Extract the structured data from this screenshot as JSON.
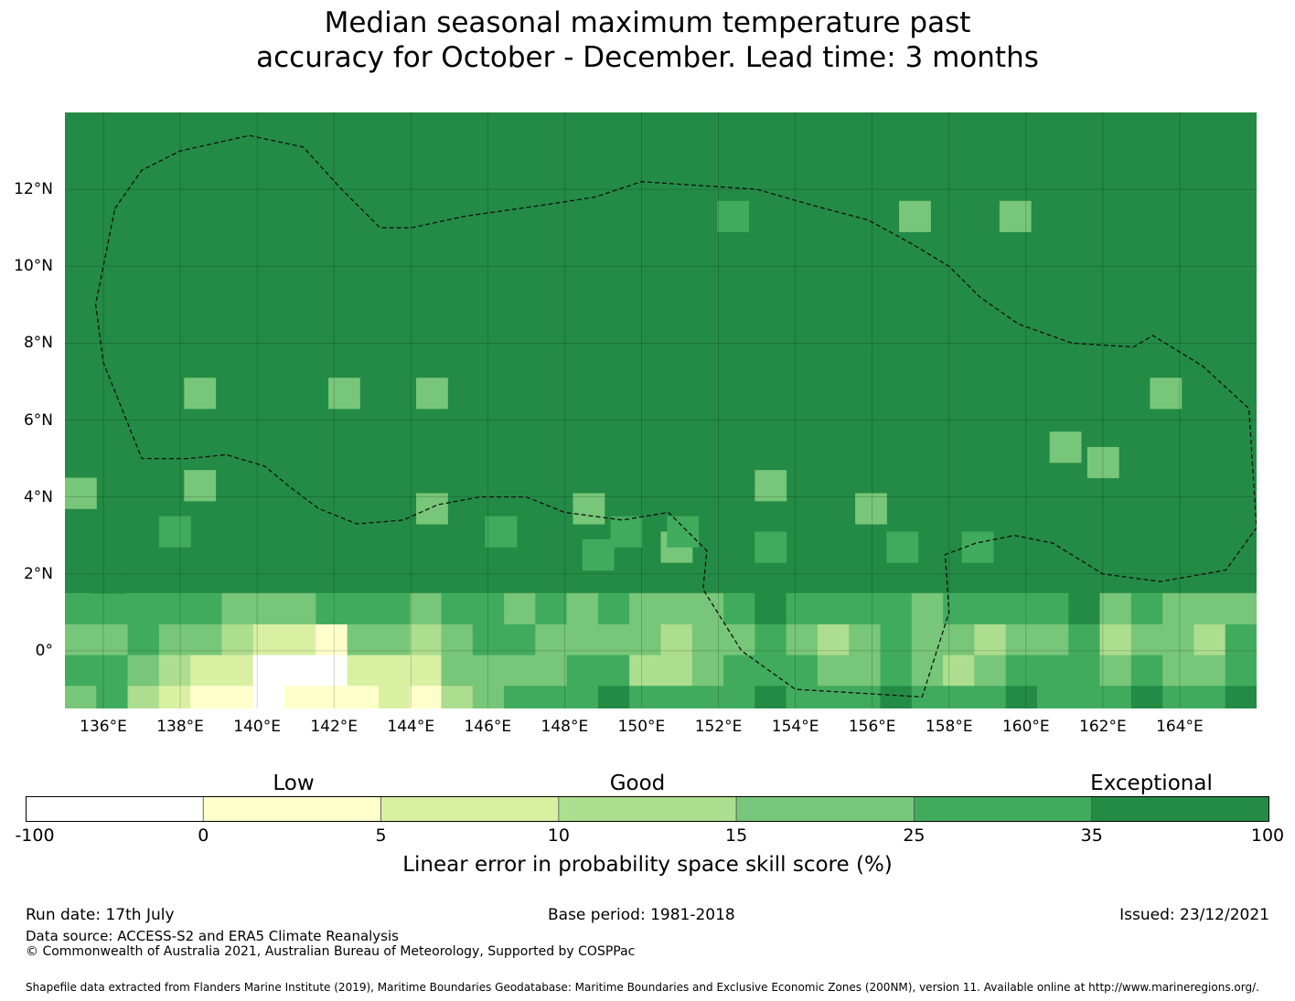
{
  "title_line1": "Median seasonal maximum temperature past",
  "title_line2": "accuracy for October - December. Lead time: 3 months",
  "map": {
    "lon_min": 135,
    "lon_max": 166,
    "lat_min": -1.5,
    "lat_max": 14,
    "grid_lons": [
      136,
      138,
      140,
      142,
      144,
      146,
      148,
      150,
      152,
      154,
      156,
      158,
      160,
      162,
      164
    ],
    "grid_lats": [
      0,
      2,
      4,
      6,
      8,
      10,
      12
    ],
    "x_tick_labels": [
      "136°E",
      "138°E",
      "140°E",
      "142°E",
      "144°E",
      "146°E",
      "148°E",
      "150°E",
      "152°E",
      "154°E",
      "156°E",
      "158°E",
      "160°E",
      "162°E",
      "164°E"
    ],
    "y_tick_labels": [
      "0°",
      "2°N",
      "4°N",
      "6°N",
      "8°N",
      "10°N",
      "12°N"
    ],
    "colors": {
      "0": "#ffffff",
      "1": "#ffffcc",
      "2": "#d9f0a3",
      "3": "#addd8e",
      "4": "#78c679",
      "5": "#41ab5d",
      "6": "#238b45"
    },
    "default_class": 6,
    "cell_size_deg": 0.8,
    "cells": [
      [
        0,
        0.6,
        4
      ],
      [
        0,
        1.4,
        5
      ],
      [
        0,
        2.2,
        4
      ],
      [
        0,
        3.0,
        5
      ],
      [
        1,
        1.4,
        5
      ],
      [
        1,
        2.2,
        4
      ],
      [
        1,
        3.0,
        5
      ],
      [
        1,
        0.6,
        5
      ],
      [
        2,
        0.6,
        3
      ],
      [
        2,
        1.4,
        4
      ],
      [
        2,
        2.2,
        5
      ],
      [
        2,
        3.0,
        5
      ],
      [
        3,
        0.6,
        2
      ],
      [
        3,
        1.4,
        3
      ],
      [
        3,
        2.2,
        4
      ],
      [
        3,
        3.0,
        5
      ],
      [
        4,
        0.6,
        1
      ],
      [
        4,
        1.4,
        2
      ],
      [
        4,
        2.2,
        4
      ],
      [
        4,
        3.0,
        5
      ],
      [
        5,
        0.6,
        1
      ],
      [
        5,
        1.4,
        2
      ],
      [
        5,
        2.2,
        3
      ],
      [
        5,
        3.0,
        4
      ],
      [
        6,
        0.6,
        0
      ],
      [
        6,
        1.4,
        0
      ],
      [
        6,
        2.2,
        2
      ],
      [
        6,
        3.0,
        4
      ],
      [
        7,
        0.6,
        1
      ],
      [
        7,
        1.4,
        0
      ],
      [
        7,
        2.2,
        2
      ],
      [
        7,
        3.0,
        4
      ],
      [
        8,
        0.6,
        1
      ],
      [
        8,
        1.4,
        0
      ],
      [
        8,
        2.2,
        1
      ],
      [
        8,
        3.0,
        5
      ],
      [
        9,
        0.6,
        1
      ],
      [
        9,
        1.4,
        2
      ],
      [
        9,
        2.2,
        4
      ],
      [
        9,
        3.0,
        5
      ],
      [
        10,
        0.6,
        2
      ],
      [
        10,
        1.4,
        2
      ],
      [
        10,
        2.2,
        4
      ],
      [
        10,
        3.0,
        5
      ],
      [
        11,
        0.6,
        1
      ],
      [
        11,
        1.4,
        2
      ],
      [
        11,
        2.2,
        3
      ],
      [
        11,
        3.0,
        4
      ],
      [
        12,
        0.6,
        3
      ],
      [
        12,
        1.4,
        4
      ],
      [
        12,
        2.2,
        4
      ],
      [
        12,
        3.0,
        5
      ],
      [
        13,
        0.6,
        4
      ],
      [
        13,
        1.4,
        4
      ],
      [
        13,
        2.2,
        5
      ],
      [
        13,
        3.0,
        5
      ],
      [
        14,
        0.6,
        5
      ],
      [
        14,
        1.4,
        4
      ],
      [
        14,
        2.2,
        5
      ],
      [
        14,
        3.0,
        4
      ],
      [
        15,
        0.6,
        5
      ],
      [
        15,
        1.4,
        4
      ],
      [
        15,
        2.2,
        4
      ],
      [
        15,
        3.0,
        5
      ],
      [
        16,
        0.6,
        5
      ],
      [
        16,
        1.4,
        5
      ],
      [
        16,
        2.2,
        4
      ],
      [
        16,
        3.0,
        4
      ],
      [
        17,
        0.6,
        6
      ],
      [
        17,
        1.4,
        5
      ],
      [
        17,
        2.2,
        4
      ],
      [
        17,
        3.0,
        5
      ],
      [
        18,
        0.6,
        5
      ],
      [
        18,
        1.4,
        3
      ],
      [
        18,
        2.2,
        4
      ],
      [
        18,
        3.0,
        4
      ],
      [
        19,
        0.6,
        5
      ],
      [
        19,
        1.4,
        3
      ],
      [
        19,
        2.2,
        3
      ],
      [
        19,
        3.0,
        4
      ],
      [
        20,
        0.6,
        5
      ],
      [
        20,
        1.4,
        4
      ],
      [
        20,
        2.2,
        4
      ],
      [
        20,
        3.0,
        4
      ],
      [
        21,
        0.6,
        5
      ],
      [
        21,
        1.4,
        5
      ],
      [
        21,
        2.2,
        4
      ],
      [
        21,
        3.0,
        5
      ],
      [
        22,
        0.6,
        6
      ],
      [
        22,
        1.4,
        5
      ],
      [
        22,
        2.2,
        5
      ],
      [
        22,
        3.0,
        6
      ],
      [
        23,
        0.6,
        5
      ],
      [
        23,
        1.4,
        5
      ],
      [
        23,
        2.2,
        4
      ],
      [
        23,
        3.0,
        5
      ],
      [
        24,
        0.6,
        5
      ],
      [
        24,
        1.4,
        4
      ],
      [
        24,
        2.2,
        3
      ],
      [
        24,
        3.0,
        5
      ],
      [
        25,
        0.6,
        5
      ],
      [
        25,
        1.4,
        4
      ],
      [
        25,
        2.2,
        4
      ],
      [
        25,
        3.0,
        5
      ],
      [
        26,
        0.6,
        6
      ],
      [
        26,
        1.4,
        5
      ],
      [
        26,
        2.2,
        5
      ],
      [
        26,
        3.0,
        5
      ],
      [
        27,
        0.6,
        5
      ],
      [
        27,
        1.4,
        4
      ],
      [
        27,
        2.2,
        4
      ],
      [
        27,
        3.0,
        4
      ],
      [
        28,
        0.6,
        5
      ],
      [
        28,
        1.4,
        3
      ],
      [
        28,
        2.2,
        4
      ],
      [
        28,
        3.0,
        5
      ],
      [
        29,
        0.6,
        5
      ],
      [
        29,
        1.4,
        4
      ],
      [
        29,
        2.2,
        3
      ],
      [
        29,
        3.0,
        5
      ],
      [
        30,
        0.6,
        6
      ],
      [
        30,
        1.4,
        5
      ],
      [
        30,
        2.2,
        4
      ],
      [
        30,
        3.0,
        5
      ],
      [
        31,
        0.6,
        5
      ],
      [
        31,
        1.4,
        5
      ],
      [
        31,
        2.2,
        4
      ],
      [
        31,
        3.0,
        5
      ],
      [
        32,
        0.6,
        5
      ],
      [
        32,
        1.4,
        5
      ],
      [
        32,
        2.2,
        5
      ],
      [
        32,
        3.0,
        6
      ],
      [
        33,
        0.6,
        5
      ],
      [
        33,
        1.4,
        4
      ],
      [
        33,
        2.2,
        3
      ],
      [
        33,
        3.0,
        4
      ],
      [
        34,
        0.6,
        6
      ],
      [
        34,
        1.4,
        5
      ],
      [
        34,
        2.2,
        4
      ],
      [
        34,
        3.0,
        5
      ],
      [
        35,
        0.6,
        5
      ],
      [
        35,
        1.4,
        4
      ],
      [
        35,
        2.2,
        4
      ],
      [
        35,
        3.0,
        4
      ],
      [
        36,
        0.6,
        5
      ],
      [
        36,
        1.4,
        4
      ],
      [
        36,
        2.2,
        3
      ],
      [
        36,
        3.0,
        4
      ],
      [
        37,
        0.6,
        6
      ],
      [
        37,
        1.4,
        5
      ],
      [
        37,
        2.2,
        5
      ],
      [
        37,
        3.0,
        4
      ]
    ],
    "extra_cells": [
      [
        3.8,
        8.6,
        4
      ],
      [
        3.8,
        6.2,
        4
      ],
      [
        8.4,
        8.6,
        4
      ],
      [
        11.2,
        8.6,
        4
      ],
      [
        11.2,
        5.6,
        4
      ],
      [
        16.2,
        5.6,
        4
      ],
      [
        19.0,
        4.6,
        4
      ],
      [
        22.0,
        6.2,
        4
      ],
      [
        25.2,
        5.6,
        4
      ],
      [
        31.4,
        7.2,
        4
      ],
      [
        32.6,
        6.8,
        4
      ],
      [
        34.6,
        8.6,
        4
      ],
      [
        29.8,
        13.2,
        4
      ],
      [
        26.6,
        13.2,
        4
      ],
      [
        20.8,
        13.2,
        5
      ],
      [
        0,
        6.0,
        4
      ],
      [
        0.9,
        3.8,
        6
      ],
      [
        3.0,
        5.0,
        5
      ],
      [
        13.4,
        5.0,
        5
      ],
      [
        16.5,
        4.4,
        5
      ],
      [
        17.4,
        5.0,
        5
      ],
      [
        19.2,
        5.0,
        5
      ],
      [
        22.0,
        4.6,
        5
      ],
      [
        26.2,
        4.6,
        5
      ],
      [
        28.6,
        4.6,
        5
      ]
    ],
    "eez_outline": [
      [
        136.3,
        11.5
      ],
      [
        137.0,
        12.5
      ],
      [
        138.0,
        13.0
      ],
      [
        139.8,
        13.4
      ],
      [
        141.2,
        13.1
      ],
      [
        142.2,
        12.0
      ],
      [
        143.2,
        11.0
      ],
      [
        144.0,
        11.0
      ],
      [
        145.4,
        11.3
      ],
      [
        147.5,
        11.6
      ],
      [
        148.8,
        11.8
      ],
      [
        150.0,
        12.2
      ],
      [
        151.5,
        12.1
      ],
      [
        153.0,
        12.0
      ],
      [
        154.4,
        11.6
      ],
      [
        155.9,
        11.2
      ],
      [
        157.0,
        10.6
      ],
      [
        158.0,
        10.0
      ],
      [
        158.8,
        9.2
      ],
      [
        159.8,
        8.5
      ],
      [
        161.2,
        8.0
      ],
      [
        162.8,
        7.9
      ],
      [
        163.3,
        8.2
      ],
      [
        164.6,
        7.4
      ],
      [
        165.8,
        6.3
      ],
      [
        166.0,
        3.2
      ],
      [
        165.2,
        2.1
      ],
      [
        163.5,
        1.8
      ],
      [
        162.0,
        2.0
      ],
      [
        160.7,
        2.8
      ],
      [
        159.7,
        3.0
      ],
      [
        158.7,
        2.8
      ],
      [
        157.9,
        2.5
      ],
      [
        158.0,
        1.0
      ],
      [
        157.3,
        -1.2
      ],
      [
        154.0,
        -1.0
      ],
      [
        152.6,
        0.0
      ],
      [
        151.6,
        1.6
      ],
      [
        151.7,
        2.6
      ],
      [
        150.7,
        3.6
      ],
      [
        149.5,
        3.4
      ],
      [
        148.0,
        3.6
      ],
      [
        147.0,
        4.0
      ],
      [
        145.8,
        4.0
      ],
      [
        144.7,
        3.8
      ],
      [
        143.8,
        3.4
      ],
      [
        142.6,
        3.3
      ],
      [
        141.6,
        3.7
      ],
      [
        140.8,
        4.3
      ],
      [
        140.2,
        4.8
      ],
      [
        139.2,
        5.1
      ],
      [
        138.2,
        5.0
      ],
      [
        137.0,
        5.0
      ],
      [
        136.4,
        6.5
      ],
      [
        136.0,
        7.5
      ],
      [
        135.8,
        9.0
      ],
      [
        136.3,
        11.5
      ]
    ]
  },
  "colorbar": {
    "category_labels": [
      "Low",
      "Good",
      "Exceptional"
    ],
    "ticks": [
      "-100",
      "0",
      "5",
      "10",
      "15",
      "25",
      "35",
      "100"
    ],
    "colors": [
      "#ffffff",
      "#ffffcc",
      "#d9f0a3",
      "#addd8e",
      "#78c679",
      "#41ab5d",
      "#238b45"
    ],
    "title": "Linear error in probability space skill score (%)"
  },
  "footer": {
    "run_date": "Run date: 17th July",
    "base_period": "Base period: 1981-2018",
    "issued": "Issued: 23/12/2021",
    "data_source": "Data source: ACCESS-S2 and ERA5 Climate Reanalysis",
    "copyright": "© Commonwealth of Australia 2021, Australian Bureau of Meteorology, Supported by COSPPac",
    "shapefile": "Shapefile data extracted from Flanders Marine Institute (2019), Maritime Boundaries Geodatabase: Maritime Boundaries and Exclusive Economic Zones (200NM), version 11. Available online at http://www.marineregions.org/."
  }
}
